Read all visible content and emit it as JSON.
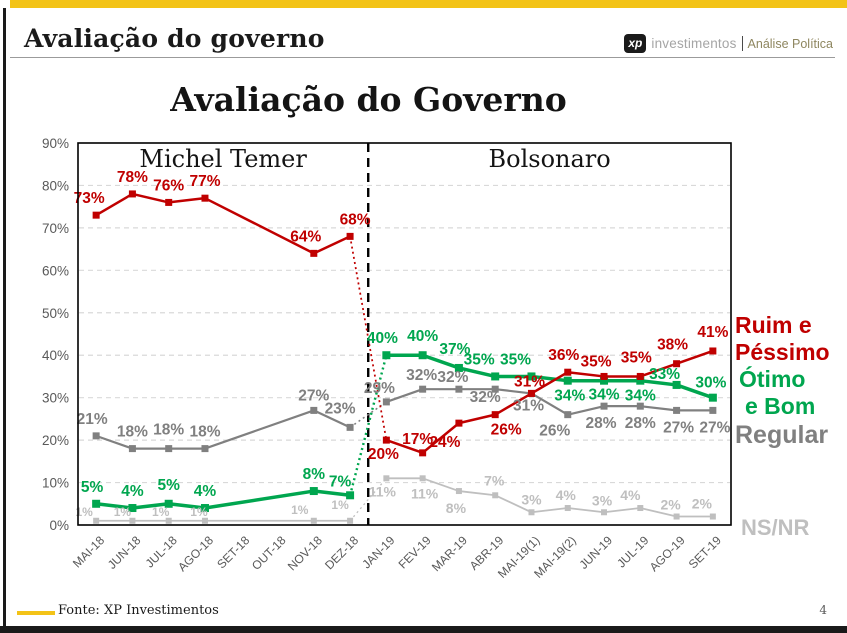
{
  "page": {
    "header_title": "Avaliação do governo",
    "brand": {
      "logo_text": "xp",
      "brand_name": "investimentos",
      "division": "Análise Política"
    },
    "footer": {
      "source": "Fonte: XP Investimentos",
      "page_number": "4"
    }
  },
  "colors": {
    "accent_yellow": "#F3C317",
    "ruim": "#C00000",
    "otimo": "#00A64F",
    "regular": "#808080",
    "nsnr": "#BFBFBF",
    "axis_text": "#595959",
    "division_text": "#8E865F",
    "gridline": "#D9D9D9",
    "border": "#000000"
  },
  "chart_data": {
    "type": "line",
    "title": "Avaliação do Governo",
    "ylim": [
      0,
      90
    ],
    "y_ticks": [
      "0%",
      "10%",
      "20%",
      "30%",
      "40%",
      "50%",
      "60%",
      "70%",
      "80%",
      "90%"
    ],
    "grid": "dashed-horizontal",
    "categories": [
      "MAI-18",
      "JUN-18",
      "JUL-18",
      "AGO-18",
      "SET-18",
      "OUT-18",
      "NOV-18",
      "DEZ-18",
      "JAN-19",
      "FEV-19",
      "MAR-19",
      "ABR-19",
      "MAI-19(1)",
      "MAI-19(2)",
      "JUN-19",
      "JUL-19",
      "AGO-19",
      "SET-19"
    ],
    "divider_after": "DEZ-18",
    "period_labels": [
      {
        "label": "Michel Temer"
      },
      {
        "label": "Bolsonaro"
      }
    ],
    "legend": {
      "ruim": [
        "Ruim e",
        "Péssimo"
      ],
      "otimo": [
        "Ótimo",
        "e Bom"
      ],
      "regular": "Regular",
      "nsnr": "NS/NR"
    },
    "series": [
      {
        "key": "nsnr",
        "name": "NS/NR",
        "width": 1.8,
        "marker": 6,
        "label_size": 14,
        "points": [
          {
            "x": "MAI-18",
            "v": 1,
            "dx": -12,
            "dy": -5,
            "fs": 12
          },
          {
            "x": "JUN-18",
            "v": 1,
            "dx": -10,
            "dy": -5,
            "fs": 12
          },
          {
            "x": "JUL-18",
            "v": 1,
            "dx": -8,
            "dy": -5,
            "fs": 12
          },
          {
            "x": "AGO-18",
            "v": 1,
            "dx": -6,
            "dy": -5,
            "fs": 12
          },
          {
            "x": "NOV-18",
            "v": 1,
            "dx": -14,
            "dy": -7,
            "fs": 12
          },
          {
            "x": "DEZ-18",
            "v": 1,
            "dx": -10,
            "dy": -12,
            "fs": 12
          },
          {
            "x": "JAN-19",
            "v": 11,
            "dx": -4,
            "dy": 18
          },
          {
            "x": "FEV-19",
            "v": 11,
            "dx": 2,
            "dy": 20
          },
          {
            "x": "MAR-19",
            "v": 8,
            "dx": -3,
            "dy": 22
          },
          {
            "x": "ABR-19",
            "v": 7,
            "dx": -1,
            "dy": -10
          },
          {
            "x": "MAI-19(1)",
            "v": 3,
            "dx": 0,
            "dy": -8
          },
          {
            "x": "MAI-19(2)",
            "v": 4,
            "dx": -2,
            "dy": -8
          },
          {
            "x": "JUN-19",
            "v": 3,
            "dx": -2,
            "dy": -7
          },
          {
            "x": "JUL-19",
            "v": 4,
            "dx": -10,
            "dy": -8
          },
          {
            "x": "AGO-19",
            "v": 2,
            "dx": -6,
            "dy": -7
          },
          {
            "x": "SET-19",
            "v": 2,
            "dx": -11,
            "dy": -8
          }
        ]
      },
      {
        "key": "regular",
        "name": "Regular",
        "width": 2.2,
        "marker": 7,
        "label_size": 15.5,
        "points": [
          {
            "x": "MAI-18",
            "v": 21,
            "dx": -4,
            "dy": -12
          },
          {
            "x": "JUN-18",
            "v": 18,
            "dx": 0,
            "dy": -12
          },
          {
            "x": "JUL-18",
            "v": 18,
            "dx": 0,
            "dy": -14
          },
          {
            "x": "AGO-18",
            "v": 18,
            "dx": 0,
            "dy": -12
          },
          {
            "x": "NOV-18",
            "v": 27,
            "dx": 0,
            "dy": -10
          },
          {
            "x": "DEZ-18",
            "v": 23,
            "dx": -10,
            "dy": -14
          },
          {
            "x": "JAN-19",
            "v": 29,
            "dx": -7,
            "dy": -9
          },
          {
            "x": "FEV-19",
            "v": 32,
            "dx": -1,
            "dy": -9
          },
          {
            "x": "MAR-19",
            "v": 32,
            "dx": -6,
            "dy": -7
          },
          {
            "x": "ABR-19",
            "v": 32,
            "dx": -10,
            "dy": 13
          },
          {
            "x": "MAI-19(1)",
            "v": 31,
            "dx": -3,
            "dy": 17
          },
          {
            "x": "MAI-19(2)",
            "v": 26,
            "dx": -13,
            "dy": 21
          },
          {
            "x": "JUN-19",
            "v": 28,
            "dx": -3,
            "dy": 22
          },
          {
            "x": "JUL-19",
            "v": 28,
            "dx": 0,
            "dy": 22
          },
          {
            "x": "AGO-19",
            "v": 27,
            "dx": 2,
            "dy": 22
          },
          {
            "x": "SET-19",
            "v": 27,
            "dx": 2,
            "dy": 22
          }
        ]
      },
      {
        "key": "otimo",
        "name": "Ótimo e Bom",
        "width": 3.5,
        "marker": 8,
        "label_size": 15.5,
        "points": [
          {
            "x": "MAI-18",
            "v": 5,
            "dx": -4,
            "dy": -12
          },
          {
            "x": "JUN-18",
            "v": 4,
            "dx": 0,
            "dy": -12
          },
          {
            "x": "JUL-18",
            "v": 5,
            "dx": 0,
            "dy": -14
          },
          {
            "x": "AGO-18",
            "v": 4,
            "dx": 0,
            "dy": -12
          },
          {
            "x": "NOV-18",
            "v": 8,
            "dx": 0,
            "dy": -12
          },
          {
            "x": "DEZ-18",
            "v": 7,
            "dx": -10,
            "dy": -9
          },
          {
            "x": "JAN-19",
            "v": 40,
            "dx": -4,
            "dy": -12
          },
          {
            "x": "FEV-19",
            "v": 40,
            "dx": 0,
            "dy": -14
          },
          {
            "x": "MAR-19",
            "v": 37,
            "dx": -4,
            "dy": -14
          },
          {
            "x": "ABR-19",
            "v": 35,
            "dx": -16,
            "dy": -12
          },
          {
            "x": "MAI-19(1)",
            "v": 35,
            "dx": -16,
            "dy": -12
          },
          {
            "x": "MAI-19(2)",
            "v": 34,
            "dx": 2,
            "dy": 20
          },
          {
            "x": "JUN-19",
            "v": 34,
            "dx": 0,
            "dy": 19
          },
          {
            "x": "JUL-19",
            "v": 34,
            "dx": 0,
            "dy": 20
          },
          {
            "x": "AGO-19",
            "v": 33,
            "dx": -12,
            "dy": -6
          },
          {
            "x": "SET-19",
            "v": 30,
            "dx": -2,
            "dy": -10
          }
        ]
      },
      {
        "key": "ruim",
        "name": "Ruim e Péssimo",
        "width": 2.5,
        "marker": 7,
        "label_size": 15.5,
        "points": [
          {
            "x": "MAI-18",
            "v": 73,
            "dx": -7,
            "dy": -12
          },
          {
            "x": "JUN-18",
            "v": 78,
            "dx": 0,
            "dy": -12
          },
          {
            "x": "JUL-18",
            "v": 76,
            "dx": 0,
            "dy": -12
          },
          {
            "x": "AGO-18",
            "v": 77,
            "dx": 0,
            "dy": -12
          },
          {
            "x": "NOV-18",
            "v": 64,
            "dx": -8,
            "dy": -12
          },
          {
            "x": "DEZ-18",
            "v": 68,
            "dx": 5,
            "dy": -12
          },
          {
            "x": "JAN-19",
            "v": 20,
            "dx": -3,
            "dy": 19
          },
          {
            "x": "FEV-19",
            "v": 17,
            "dx": -5,
            "dy": -9
          },
          {
            "x": "MAR-19",
            "v": 24,
            "dx": -14,
            "dy": 24
          },
          {
            "x": "ABR-19",
            "v": 26,
            "dx": 11,
            "dy": 20
          },
          {
            "x": "MAI-19(1)",
            "v": 31,
            "dx": -2,
            "dy": -7
          },
          {
            "x": "MAI-19(2)",
            "v": 36,
            "dx": -4,
            "dy": -12
          },
          {
            "x": "JUN-19",
            "v": 35,
            "dx": -8,
            "dy": -10
          },
          {
            "x": "JUL-19",
            "v": 35,
            "dx": -4,
            "dy": -14
          },
          {
            "x": "AGO-19",
            "v": 38,
            "dx": -4,
            "dy": -14
          },
          {
            "x": "SET-19",
            "v": 41,
            "dx": 0,
            "dy": -14
          }
        ]
      }
    ]
  }
}
